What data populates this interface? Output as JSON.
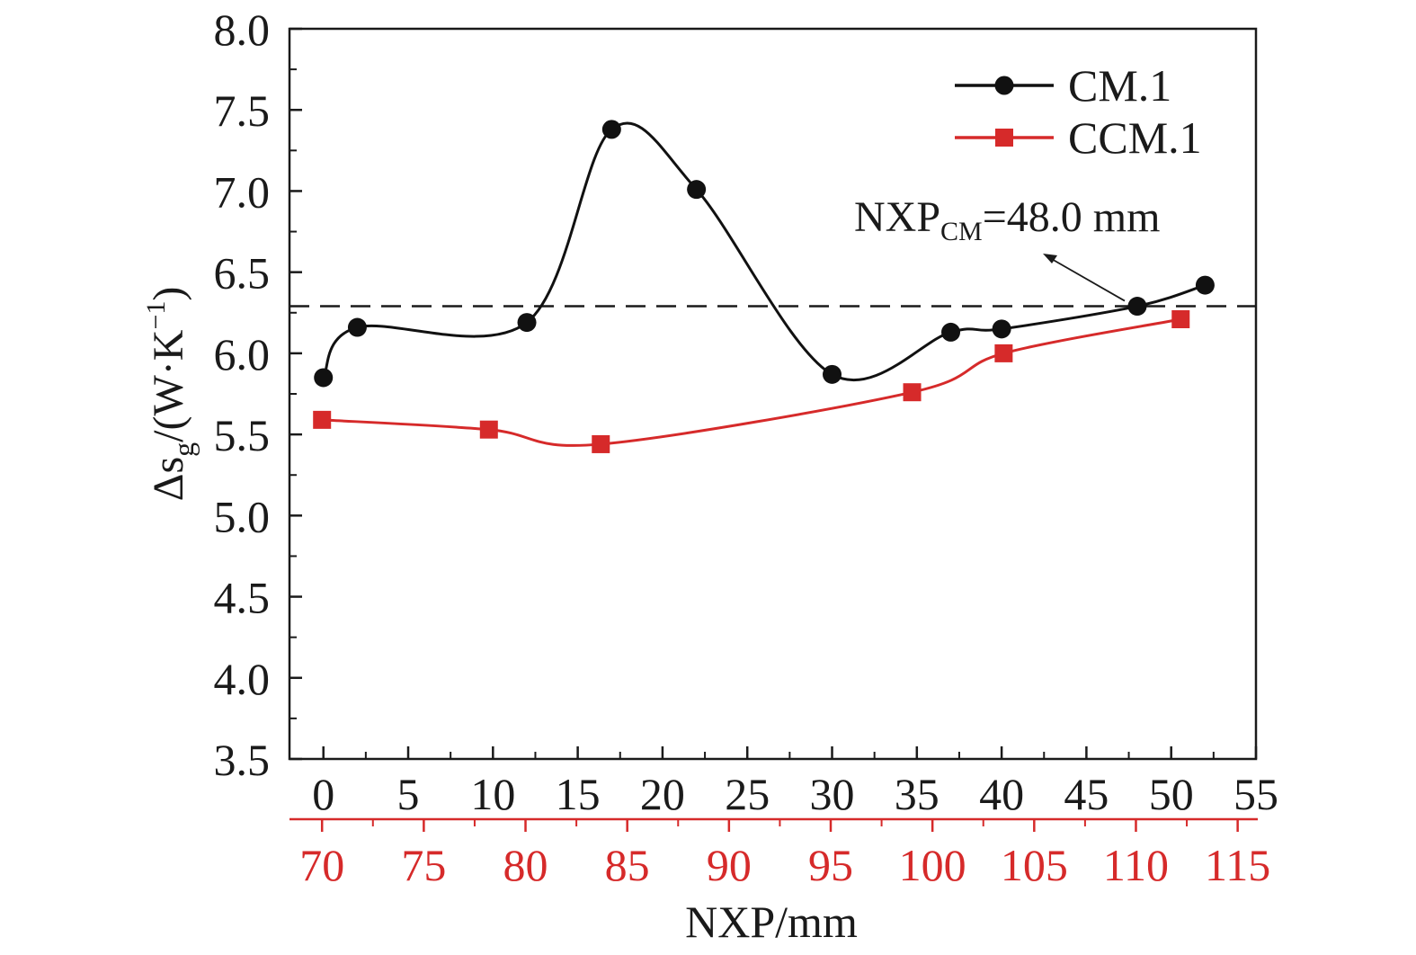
{
  "chart_data": {
    "type": "line",
    "ylabel": "Δs",
    "ylabel_sub": "g",
    "ylabel_unit": "/(W·K",
    "ylabel_sup": "−1",
    "ylabel_close": ")",
    "xlabel": "NXP/mm",
    "ylim": [
      3.5,
      8.0
    ],
    "yticks": [
      "3.5",
      "4.0",
      "4.5",
      "5.0",
      "5.5",
      "6.0",
      "6.5",
      "7.0",
      "7.5",
      "8.0"
    ],
    "x_bottom_axis": {
      "lim": [
        -2,
        55
      ],
      "ticks": [
        "0",
        "5",
        "10",
        "15",
        "20",
        "25",
        "30",
        "35",
        "40",
        "45",
        "50",
        "55"
      ],
      "color": "#1a1a1a"
    },
    "x_red_axis": {
      "lim": [
        68.4,
        115.9
      ],
      "ticks": [
        "70",
        "75",
        "80",
        "85",
        "90",
        "95",
        "100",
        "105",
        "110",
        "115"
      ],
      "color": "#d62a2a"
    },
    "reference_line": {
      "y": 6.29,
      "style": "dashed"
    },
    "annotation": {
      "text": "NXP",
      "sub": "CM",
      "rest": "=48.0 mm",
      "points_to": {
        "x": 48.0,
        "y": 6.29
      }
    },
    "legend_position": "top-right",
    "series": [
      {
        "name": "CM.1",
        "axis": "bottom",
        "color": "#111111",
        "marker": "circle",
        "x": [
          0,
          2,
          12,
          17,
          22,
          30,
          37,
          40,
          48,
          52
        ],
        "y": [
          5.85,
          6.16,
          6.19,
          7.38,
          7.01,
          5.87,
          6.13,
          6.15,
          6.29,
          6.42
        ]
      },
      {
        "name": "CCM.1",
        "axis": "red",
        "color": "#d62a2a",
        "marker": "square",
        "x": [
          70,
          78.2,
          83.7,
          99.0,
          103.5,
          112.2
        ],
        "y": [
          5.59,
          5.53,
          5.44,
          5.76,
          6.0,
          6.21
        ]
      }
    ]
  }
}
